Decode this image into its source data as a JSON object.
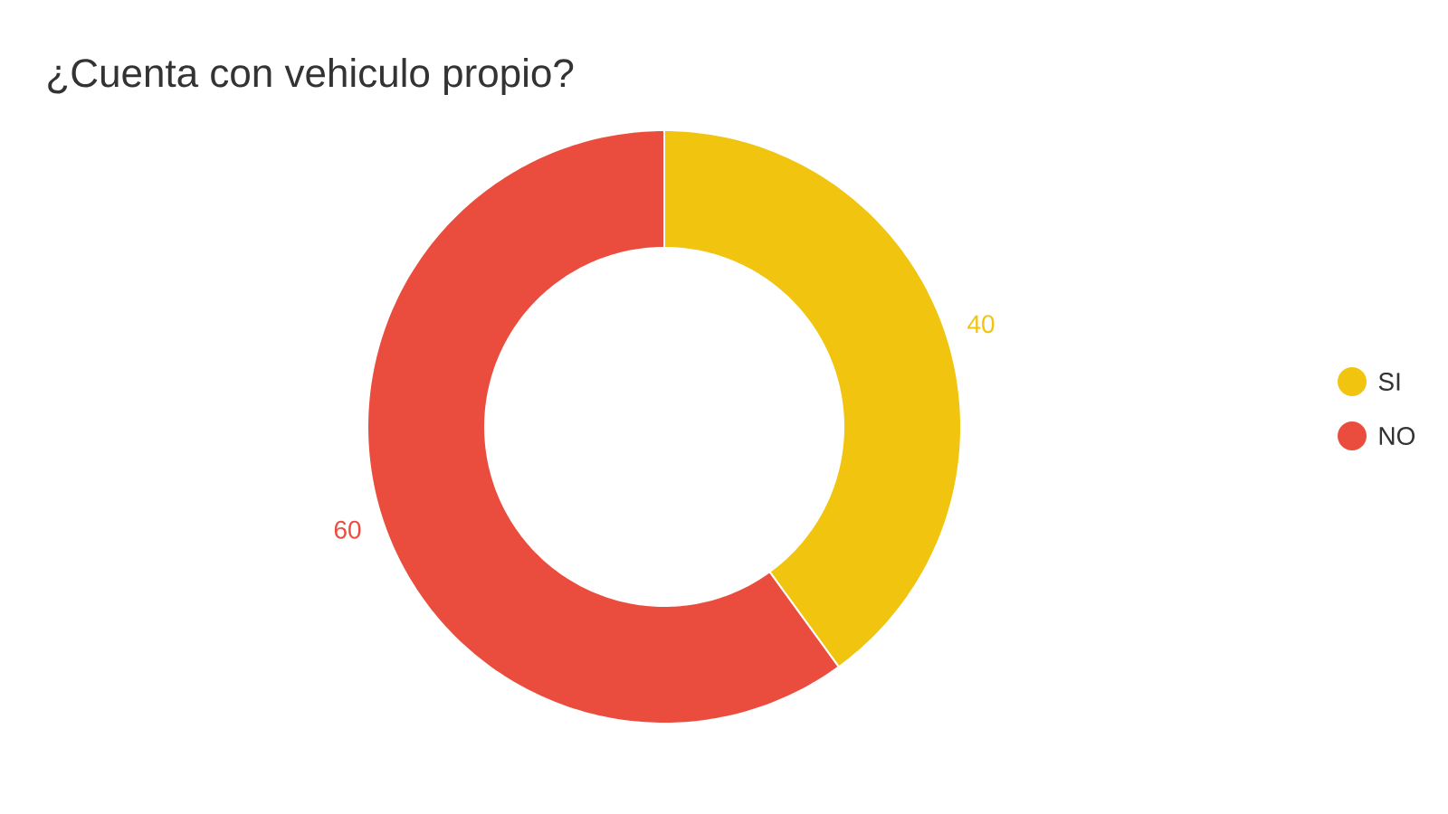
{
  "chart_data": {
    "type": "donut",
    "title": "¿Cuenta con vehiculo propio?",
    "categories": [
      "SI",
      "NO"
    ],
    "values": [
      40,
      60
    ],
    "colors": [
      "#f1c40f",
      "#ea4d3d"
    ],
    "data_labels": true,
    "legend": "right"
  }
}
